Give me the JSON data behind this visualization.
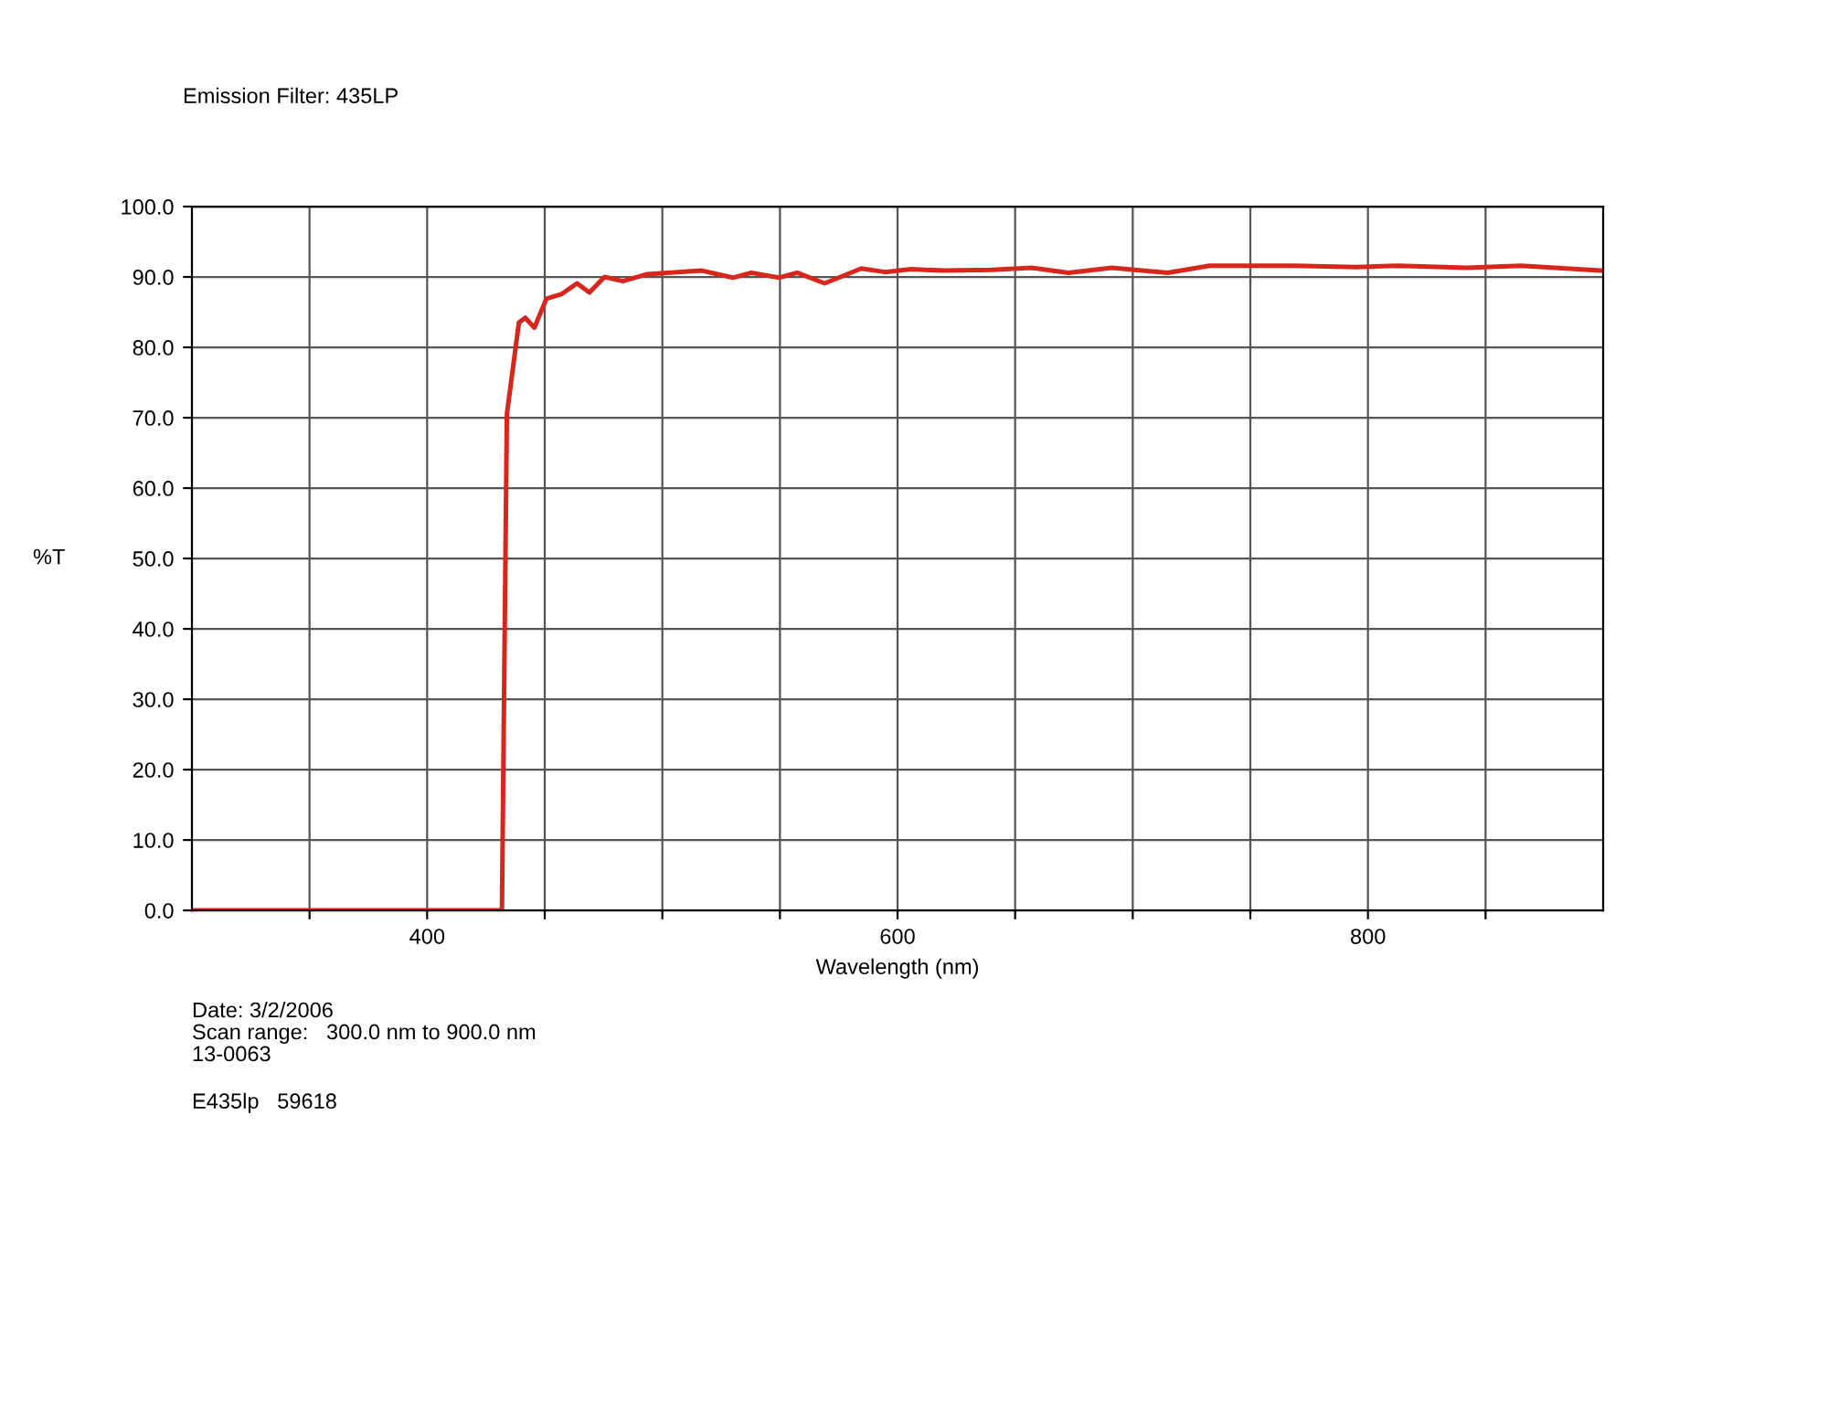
{
  "chart_data": {
    "type": "line",
    "title": "Emission Filter: 435LP",
    "xlabel": "Wavelength (nm)",
    "ylabel": "%T",
    "x": [
      300,
      400,
      430,
      431.8,
      433.9,
      439,
      441.7,
      445.6,
      450.7,
      457.3,
      463.7,
      469,
      475.4,
      483.2,
      493.6,
      516.8,
      530,
      537.8,
      549.5,
      557.3,
      569,
      584.6,
      594.7,
      605.6,
      620,
      640,
      657,
      672.7,
      691,
      714.8,
      732.7,
      769,
      795,
      813,
      842,
      865,
      898.8,
      900
    ],
    "series": [
      {
        "color": "#d8261c",
        "values": [
          0,
          0,
          0,
          0,
          70.5,
          83.5,
          84.2,
          82.8,
          86.9,
          87.6,
          89.1,
          87.8,
          90.0,
          89.4,
          90.4,
          90.9,
          89.9,
          90.6,
          89.9,
          90.6,
          89.1,
          91.2,
          90.7,
          91.1,
          90.9,
          91.0,
          91.3,
          90.6,
          91.3,
          90.6,
          91.6,
          91.6,
          91.4,
          91.6,
          91.3,
          91.6,
          90.9,
          90.9
        ]
      }
    ],
    "xlim": [
      300,
      900
    ],
    "xticks": [
      {
        "value": 350,
        "label": null
      },
      400,
      {
        "value": 450,
        "label": null
      },
      {
        "value": 500,
        "label": null
      },
      {
        "value": 550,
        "label": null
      },
      600,
      {
        "value": 650,
        "label": null
      },
      {
        "value": 700,
        "label": null
      },
      {
        "value": 750,
        "label": null
      },
      800,
      {
        "value": 850,
        "label": null
      }
    ],
    "ylim": [
      0,
      100
    ],
    "yticks": [
      {
        "value": 0,
        "label": "0.0"
      },
      {
        "value": 10,
        "label": "10.0"
      },
      {
        "value": 20,
        "label": "20.0"
      },
      {
        "value": 30,
        "label": "30.0"
      },
      {
        "value": 40,
        "label": "40.0"
      },
      {
        "value": 50,
        "label": "50.0"
      },
      {
        "value": 60,
        "label": "60.0"
      },
      {
        "value": 70,
        "label": "70.0"
      },
      {
        "value": 80,
        "label": "80.0"
      },
      {
        "value": 90,
        "label": "90.0"
      },
      {
        "value": 100,
        "label": "100.0"
      }
    ],
    "grid": true,
    "line_style": "solid",
    "annotations": [
      "Date: 3/2/2006",
      "Scan range:   300.0 nm to 900.0 nm",
      "13-0063",
      "E435lp   59618"
    ]
  }
}
